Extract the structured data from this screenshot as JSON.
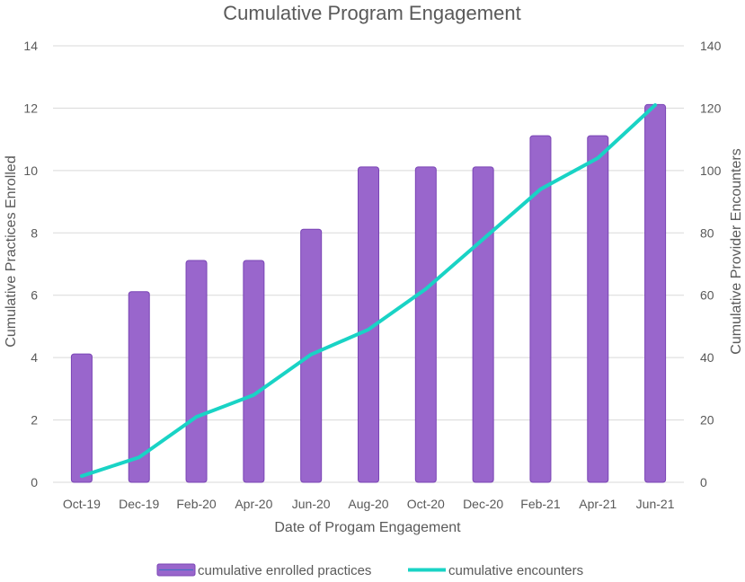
{
  "chart_data": {
    "type": "bar+line",
    "title": "Cumulative Program Engagement",
    "xlabel": "Date of Progam Engagement",
    "ylabel_left": "Cumulative Practices Enrolled",
    "ylabel_right": "Cumulative Provider Encounters",
    "categories": [
      "Oct-19",
      "Dec-19",
      "Feb-20",
      "Apr-20",
      "Jun-20",
      "Aug-20",
      "Oct-20",
      "Dec-20",
      "Feb-21",
      "Apr-21",
      "Jun-21"
    ],
    "ylim_left": [
      0,
      14
    ],
    "ylim_right": [
      0,
      140
    ],
    "yticks_left": [
      "0",
      "2",
      "4",
      "6",
      "8",
      "10",
      "12",
      "14"
    ],
    "yticks_right": [
      "0",
      "20",
      "40",
      "60",
      "80",
      "100",
      "120",
      "140"
    ],
    "grid": true,
    "legend_position": "bottom",
    "series": [
      {
        "name": "cumulative enrolled practices",
        "type": "bar",
        "axis": "left",
        "color": "#9966cc",
        "values": [
          4,
          6,
          7,
          7,
          8,
          10,
          10,
          10,
          11,
          11,
          12
        ]
      },
      {
        "name": "cumulative encounters",
        "type": "line",
        "axis": "right",
        "color": "#19d3c5",
        "values": [
          2,
          8,
          21,
          28,
          41,
          49,
          62,
          78,
          94,
          104,
          121
        ]
      }
    ]
  }
}
